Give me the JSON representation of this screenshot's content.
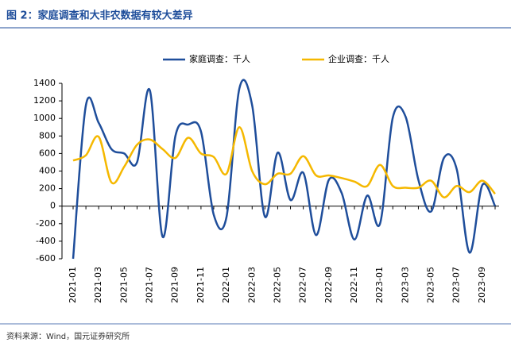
{
  "chart_data": {
    "type": "line",
    "title": "图 2：家庭调查和大非农数据有较大差异",
    "source": "资料来源：Wind，国元证券研究所",
    "categories": [
      "2021-01",
      null,
      "2021-03",
      null,
      "2021-05",
      null,
      "2021-07",
      null,
      "2021-09",
      null,
      "2021-11",
      null,
      "2022-01",
      null,
      "2022-03",
      null,
      "2022-05",
      null,
      "2022-07",
      null,
      "2022-09",
      null,
      "2022-11",
      null,
      "2023-01",
      null,
      "2023-03",
      null,
      "2023-05",
      null,
      "2023-07",
      null,
      "2023-09",
      null
    ],
    "series": [
      {
        "name": "家庭调查：千人",
        "color": "#1f4e9b",
        "values": [
          -600,
          1150,
          950,
          650,
          600,
          500,
          1320,
          -350,
          800,
          930,
          850,
          -100,
          -120,
          1340,
          1150,
          -120,
          610,
          70,
          380,
          -330,
          300,
          150,
          -380,
          120,
          -200,
          1010,
          1020,
          300,
          -60,
          550,
          420,
          -530,
          240,
          0
        ]
      },
      {
        "name": "企业调查：千人",
        "color": "#f5b800",
        "values": [
          520,
          580,
          790,
          270,
          450,
          700,
          760,
          650,
          550,
          780,
          600,
          560,
          370,
          900,
          400,
          250,
          370,
          370,
          570,
          350,
          350,
          320,
          280,
          230,
          470,
          230,
          210,
          210,
          290,
          100,
          230,
          160,
          290,
          140
        ]
      }
    ],
    "ylim": [
      -600,
      1400
    ],
    "yticks": [
      -600,
      -400,
      -200,
      0,
      200,
      400,
      600,
      800,
      1000,
      1200,
      1400
    ],
    "grid": false,
    "legend": "top"
  }
}
